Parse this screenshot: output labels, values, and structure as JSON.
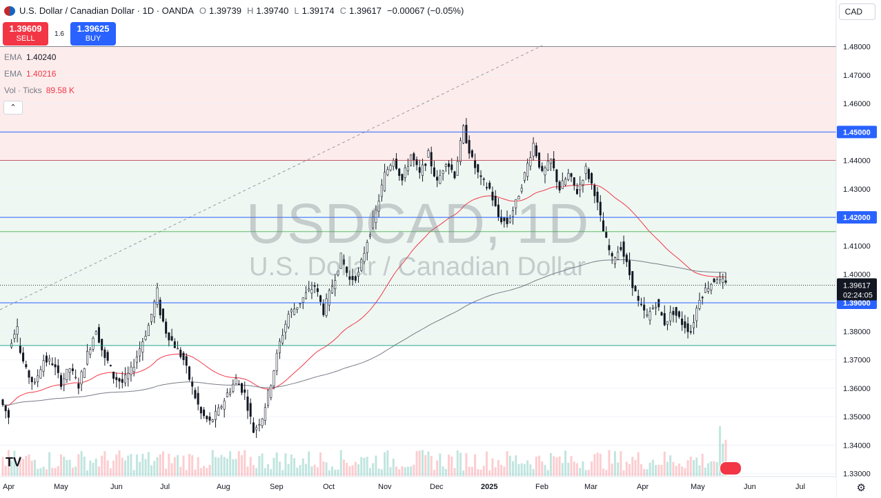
{
  "header": {
    "title": "U.S. Dollar / Canadian Dollar · 1D · OANDA",
    "open_label": "O",
    "open": "1.39739",
    "high_label": "H",
    "high": "1.39740",
    "low_label": "L",
    "low": "1.39174",
    "close_label": "C",
    "close": "1.39617",
    "change": "−0.00067 (−0.05%)"
  },
  "currency_button": "CAD",
  "trade": {
    "sell_price": "1.39609",
    "sell_label": "SELL",
    "spread": "1.6",
    "buy_price": "1.39625",
    "buy_label": "BUY"
  },
  "indicators": [
    {
      "name": "EMA",
      "value": "1.40240",
      "color": "#787b86"
    },
    {
      "name": "EMA",
      "value": "1.40216",
      "color": "#f23645"
    },
    {
      "name": "Vol · Ticks",
      "value": "89.58 K",
      "color": "#f23645"
    }
  ],
  "watermark": {
    "symbol": "USDCAD, 1D",
    "name": "U.S. Dollar / Canadian Dollar"
  },
  "price_label": {
    "price": "1.39617",
    "countdown": "02:24:05"
  },
  "colors": {
    "up": "#089981",
    "down": "#f23645",
    "ema_fast": "#f23645",
    "ema_slow": "#787b86",
    "level": "#2962ff",
    "badge": "#2962ff"
  },
  "chart_data": {
    "type": "candlestick",
    "y_ticks": [
      "1.48000",
      "1.47000",
      "1.46000",
      "1.45000",
      "1.44000",
      "1.43000",
      "1.42000",
      "1.41000",
      "1.40000",
      "1.39000",
      "1.38000",
      "1.37000",
      "1.36000",
      "1.35000",
      "1.34000",
      "1.33000"
    ],
    "ylim": [
      1.3292,
      1.4823
    ],
    "x_ticks": [
      "Apr",
      "May",
      "Jun",
      "Jul",
      "Aug",
      "Sep",
      "Oct",
      "Nov",
      "Dec",
      "2025",
      "Feb",
      "Mar",
      "Apr",
      "May",
      "Jun",
      "Jul"
    ],
    "levels": [
      1.45,
      1.42,
      1.39
    ],
    "level_labels": [
      "1.45000",
      "1.42000",
      "1.39000"
    ],
    "anchors": [
      [
        1.356,
        1.35
      ],
      [
        1.374,
        1.383
      ],
      [
        1.376,
        1.366
      ],
      [
        1.366,
        1.361
      ],
      [
        1.362,
        1.37
      ],
      [
        1.37,
        1.369
      ],
      [
        1.369,
        1.362
      ],
      [
        1.362,
        1.367
      ],
      [
        1.367,
        1.361
      ],
      [
        1.361,
        1.372
      ],
      [
        1.372,
        1.381
      ],
      [
        1.381,
        1.37
      ],
      [
        1.372,
        1.364
      ],
      [
        1.364,
        1.362
      ],
      [
        1.362,
        1.366
      ],
      [
        1.366,
        1.374
      ],
      [
        1.374,
        1.382
      ],
      [
        1.382,
        1.394
      ],
      [
        1.39,
        1.38
      ],
      [
        1.38,
        1.375
      ],
      [
        1.375,
        1.37
      ],
      [
        1.37,
        1.36
      ],
      [
        1.36,
        1.351
      ],
      [
        1.351,
        1.348
      ],
      [
        1.348,
        1.352
      ],
      [
        1.352,
        1.358
      ],
      [
        1.358,
        1.363
      ],
      [
        1.363,
        1.358
      ],
      [
        1.358,
        1.345
      ],
      [
        1.345,
        1.35
      ],
      [
        1.35,
        1.362
      ],
      [
        1.362,
        1.376
      ],
      [
        1.376,
        1.386
      ],
      [
        1.386,
        1.389
      ],
      [
        1.389,
        1.393
      ],
      [
        1.393,
        1.396
      ],
      [
        1.396,
        1.387
      ],
      [
        1.387,
        1.396
      ],
      [
        1.396,
        1.406
      ],
      [
        1.406,
        1.398
      ],
      [
        1.398,
        1.4
      ],
      [
        1.4,
        1.412
      ],
      [
        1.412,
        1.422
      ],
      [
        1.422,
        1.435
      ],
      [
        1.435,
        1.441
      ],
      [
        1.441,
        1.433
      ],
      [
        1.433,
        1.442
      ],
      [
        1.442,
        1.435
      ],
      [
        1.435,
        1.442
      ],
      [
        1.442,
        1.432
      ],
      [
        1.432,
        1.44
      ],
      [
        1.44,
        1.435
      ],
      [
        1.435,
        1.451
      ],
      [
        1.451,
        1.44
      ],
      [
        1.44,
        1.433
      ],
      [
        1.433,
        1.43
      ],
      [
        1.43,
        1.42
      ],
      [
        1.42,
        1.418
      ],
      [
        1.418,
        1.425
      ],
      [
        1.425,
        1.435
      ],
      [
        1.435,
        1.446
      ],
      [
        1.446,
        1.435
      ],
      [
        1.435,
        1.44
      ],
      [
        1.44,
        1.43
      ],
      [
        1.43,
        1.435
      ],
      [
        1.435,
        1.429
      ],
      [
        1.429,
        1.437
      ],
      [
        1.437,
        1.429
      ],
      [
        1.429,
        1.415
      ],
      [
        1.415,
        1.405
      ],
      [
        1.405,
        1.41
      ],
      [
        1.41,
        1.4
      ],
      [
        1.4,
        1.39
      ],
      [
        1.39,
        1.385
      ],
      [
        1.385,
        1.39
      ],
      [
        1.39,
        1.383
      ],
      [
        1.383,
        1.387
      ],
      [
        1.387,
        1.383
      ],
      [
        1.383,
        1.38
      ],
      [
        1.38,
        1.392
      ],
      [
        1.392,
        1.396
      ],
      [
        1.396,
        1.399
      ],
      [
        1.399,
        1.3962
      ]
    ]
  }
}
